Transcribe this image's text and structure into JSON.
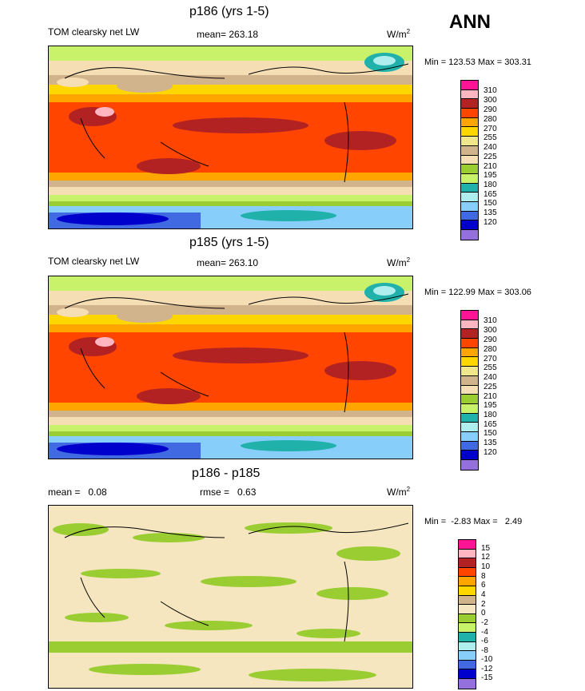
{
  "season": "ANN",
  "colors": {
    "cb_abs": [
      "#ff1493",
      "#ffb6c1",
      "#b22222",
      "#ff4500",
      "#ffa500",
      "#ffd700",
      "#f0e68c",
      "#d2b48c",
      "#f5deb3",
      "#9acd32",
      "#c8f26a",
      "#20b2aa",
      "#afeeee",
      "#87cefa",
      "#4169e1",
      "#0000cd",
      "#9370db"
    ],
    "cb_diff": [
      "#ff1493",
      "#ffb6c1",
      "#b22222",
      "#ff4500",
      "#ffa500",
      "#ffd700",
      "#d2b48c",
      "#f5e6c0",
      "#9acd32",
      "#c8f26a",
      "#20b2aa",
      "#afeeee",
      "#87cefa",
      "#4169e1",
      "#0000cd",
      "#9370db"
    ]
  },
  "panels": [
    {
      "title": "p186 (yrs 1-5)",
      "variable": "TOM clearsky net LW",
      "mean": "mean= 263.18",
      "units": "W/m",
      "units_sup": "2",
      "minmax": "Min = 123.53 Max = 303.31",
      "cb_labels": [
        "310",
        "300",
        "290",
        "280",
        "270",
        "255",
        "240",
        "225",
        "210",
        "195",
        "180",
        "165",
        "150",
        "135",
        "120"
      ]
    },
    {
      "title": "p185 (yrs 1-5)",
      "variable": "TOM clearsky net LW",
      "mean": "mean= 263.10",
      "units": "W/m",
      "units_sup": "2",
      "minmax": "Min = 122.99 Max = 303.06",
      "cb_labels": [
        "310",
        "300",
        "290",
        "280",
        "270",
        "255",
        "240",
        "225",
        "210",
        "195",
        "180",
        "165",
        "150",
        "135",
        "120"
      ]
    },
    {
      "title": "p186 - p185",
      "mean_label": "mean =   0.08",
      "rmse_label": "rmse =   0.63",
      "units": "W/m",
      "units_sup": "2",
      "minmax": "Min =  -2.83 Max =   2.49",
      "cb_labels": [
        "15",
        "12",
        "10",
        "8",
        "6",
        "4",
        "2",
        "0",
        "-2",
        "-4",
        "-6",
        "-8",
        "-10",
        "-12",
        "-15"
      ]
    }
  ]
}
